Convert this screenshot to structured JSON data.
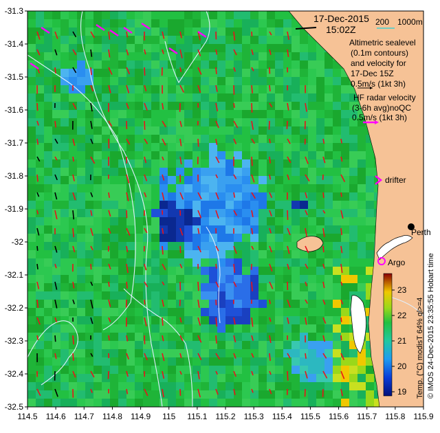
{
  "map": {
    "date": "17-Dec-2015",
    "time": "15:02Z",
    "scale_label": "200",
    "scale_depth": "1000m",
    "altimetry_note": [
      "Altimetric sealevel",
      "(0.1m contours)",
      "and velocity for",
      "17-Dec 15Z",
      "0.5m/s (1kt 3h)"
    ],
    "hf_note": [
      "HF radar velocity",
      "(3-6h avg)noQC",
      "0.5m/s (1kt 3h)"
    ],
    "drifter_label": "drifter",
    "perth_label": "Perth",
    "argo_label": "Argo",
    "colorbar_label": "Temp. (°C) modisT 64% ql>=4",
    "credit": "© IMOS 24-Dec-2015 23:35:55 Hobart time",
    "x_ticks": [
      "114.5",
      "114.6",
      "114.7",
      "114.8",
      "114.9",
      "115",
      "115.1",
      "115.2",
      "115.3",
      "115.4",
      "115.5",
      "115.6",
      "115.7",
      "115.8",
      "115.9"
    ],
    "y_ticks": [
      "-31.3",
      "-31.4",
      "-31.5",
      "-31.6",
      "-31.7",
      "-31.8",
      "-31.9",
      "-32",
      "-32.1",
      "-32.2",
      "-32.3",
      "-32.4",
      "-32.5"
    ],
    "colorbar_ticks": [
      "19",
      "20",
      "21",
      "22",
      "23"
    ],
    "colors": {
      "land": "#f6c296",
      "velocity_arrow": "#e8121a",
      "hf_arrow": "#ff00ff",
      "contour": "#e0f0ff"
    }
  }
}
